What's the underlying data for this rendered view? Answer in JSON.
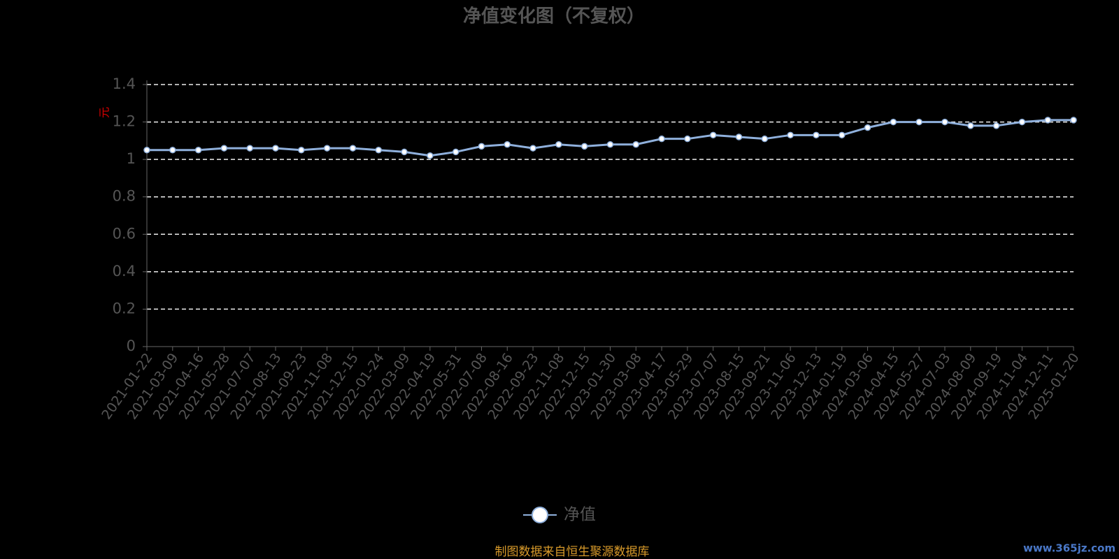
{
  "chart_data": {
    "type": "line",
    "title": "净值变化图（不复权）",
    "y_label": "元",
    "categories": [
      "2021-01-22",
      "2021-03-09",
      "2021-04-16",
      "2021-05-28",
      "2021-07-07",
      "2021-08-13",
      "2021-09-23",
      "2021-11-08",
      "2021-12-15",
      "2022-01-24",
      "2022-03-09",
      "2022-04-19",
      "2022-05-31",
      "2022-07-08",
      "2022-08-16",
      "2022-09-23",
      "2022-11-08",
      "2022-12-15",
      "2023-01-30",
      "2023-03-08",
      "2023-04-17",
      "2023-05-29",
      "2023-07-07",
      "2023-08-15",
      "2023-09-21",
      "2023-11-06",
      "2023-12-13",
      "2024-01-19",
      "2024-03-06",
      "2024-04-15",
      "2024-05-27",
      "2024-07-03",
      "2024-08-09",
      "2024-09-19",
      "2024-11-04",
      "2024-12-11",
      "2025-01-20"
    ],
    "series": [
      {
        "name": "净值",
        "color": "#8fb0dc",
        "values": [
          1.05,
          1.05,
          1.05,
          1.06,
          1.06,
          1.06,
          1.05,
          1.06,
          1.06,
          1.05,
          1.04,
          1.02,
          1.04,
          1.07,
          1.08,
          1.06,
          1.08,
          1.07,
          1.08,
          1.08,
          1.11,
          1.11,
          1.13,
          1.12,
          1.11,
          1.13,
          1.13,
          1.13,
          1.17,
          1.2,
          1.2,
          1.2,
          1.18,
          1.18,
          1.2,
          1.21,
          1.21
        ]
      }
    ],
    "ylim": [
      0,
      1.4
    ],
    "yticks": [
      0,
      0.2,
      0.4,
      0.6,
      0.8,
      1,
      1.2,
      1.4
    ],
    "grid": true,
    "source": "制图数据来自恒生聚源数据库",
    "watermark": "www.365jz.com"
  }
}
